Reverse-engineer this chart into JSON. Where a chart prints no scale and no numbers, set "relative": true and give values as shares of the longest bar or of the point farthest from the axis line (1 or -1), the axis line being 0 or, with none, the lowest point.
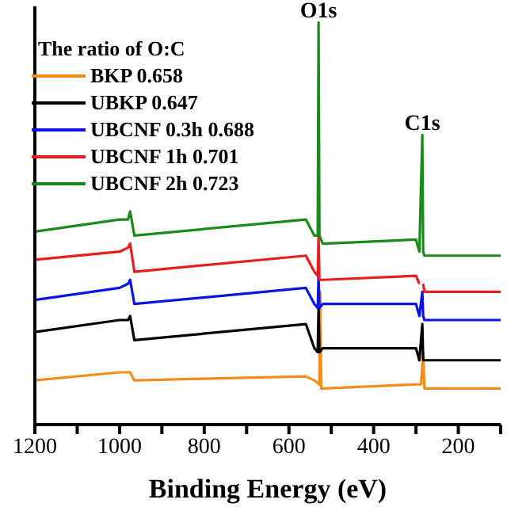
{
  "chart_data": {
    "type": "line",
    "relative": true,
    "xlabel": "Binding Energy (eV)",
    "legend_title": "The ratio of O:C",
    "legend": "top left",
    "marker": "none",
    "line_style": "solid",
    "grid": false,
    "xlim": [
      1200,
      100
    ],
    "xticks": [
      1200,
      {
        "value": 1100,
        "label": null
      },
      1000,
      {
        "value": 900,
        "label": null
      },
      800,
      {
        "value": 700,
        "label": null
      },
      600,
      {
        "value": 500,
        "label": null
      },
      400,
      {
        "value": 300,
        "label": null
      },
      200,
      {
        "value": 100,
        "label": null
      }
    ],
    "annotations": [
      {
        "text": "O1s",
        "x": 530,
        "y": 1
      },
      {
        "text": "C1s",
        "x": 285,
        "y": 0.72
      }
    ],
    "series": [
      {
        "name": "BKP 0.658",
        "color": "#f28c1c",
        "x": [
          1200,
          1000,
          980,
          975,
          965,
          560,
          540,
          528,
          526,
          524,
          520,
          300,
          288,
          283,
          280,
          278,
          100
        ],
        "values": [
          0.11,
          0.13,
          0.13,
          0.13,
          0.11,
          0.12,
          0.11,
          0.1,
          0.33,
          0.09,
          0.09,
          0.1,
          0.1,
          0.18,
          0.09,
          0.09,
          0.09
        ]
      },
      {
        "name": "UBKP 0.647",
        "color": "#000000",
        "x": [
          1200,
          1000,
          980,
          975,
          965,
          560,
          540,
          532,
          530,
          528,
          520,
          300,
          292,
          285,
          283,
          280,
          100
        ],
        "values": [
          0.23,
          0.26,
          0.26,
          0.27,
          0.21,
          0.25,
          0.19,
          0.18,
          0.29,
          0.18,
          0.19,
          0.19,
          0.16,
          0.25,
          0.16,
          0.16,
          0.16
        ]
      },
      {
        "name": "UBCNF 0.3h 0.688",
        "color": "#0a14e6",
        "x": [
          1200,
          1000,
          980,
          975,
          965,
          560,
          540,
          532,
          530,
          528,
          520,
          300,
          292,
          285,
          283,
          280,
          100
        ],
        "values": [
          0.31,
          0.34,
          0.35,
          0.36,
          0.3,
          0.34,
          0.3,
          0.29,
          0.37,
          0.29,
          0.3,
          0.3,
          0.27,
          0.33,
          0.27,
          0.26,
          0.26
        ]
      },
      {
        "name": "UBCNF 1h 0.701",
        "color": "#e61e1e",
        "x": [
          1200,
          1000,
          980,
          975,
          965,
          560,
          540,
          532,
          530,
          528,
          520,
          300,
          292,
          285,
          283,
          280,
          100
        ],
        "values": [
          0.41,
          0.43,
          0.44,
          0.45,
          0.38,
          0.42,
          0.38,
          0.37,
          0.47,
          0.36,
          0.36,
          0.37,
          0.35,
          null,
          0.35,
          0.33,
          0.33
        ]
      },
      {
        "name": "UBCNF 2h 0.723",
        "color": "#1a8a1a",
        "x": [
          1200,
          1000,
          980,
          975,
          965,
          560,
          540,
          532,
          530,
          528,
          520,
          300,
          292,
          285,
          283,
          280,
          100
        ],
        "values": [
          0.48,
          0.51,
          0.51,
          0.53,
          0.47,
          0.51,
          0.47,
          0.47,
          1,
          0.47,
          0.45,
          0.46,
          0.43,
          0.72,
          0.43,
          0.42,
          0.42
        ]
      }
    ]
  }
}
